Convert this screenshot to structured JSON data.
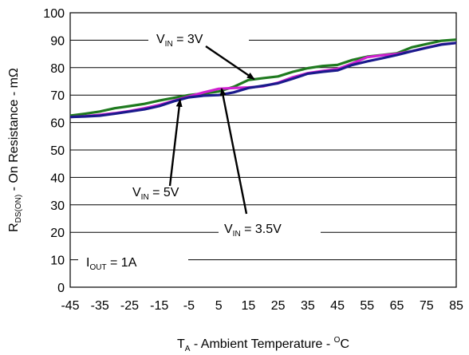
{
  "chart_data": {
    "type": "line",
    "xlabel": {
      "main": "T",
      "sub": "A",
      "rest": " - Ambient Temperature - ",
      "sup": "O",
      "unit": "C"
    },
    "ylabel": {
      "main": "R",
      "sub": "DS(ON)",
      "rest": " - On Resistance - mΩ"
    },
    "xlim": [
      -45,
      85
    ],
    "ylim": [
      0,
      100
    ],
    "xticks": [
      -45,
      -35,
      -25,
      -15,
      -5,
      5,
      15,
      25,
      35,
      45,
      55,
      65,
      75,
      85
    ],
    "yticks": [
      0,
      10,
      20,
      30,
      40,
      50,
      60,
      70,
      80,
      90,
      100
    ],
    "grid": true,
    "x": [
      -45,
      -40,
      -35,
      -30,
      -25,
      -20,
      -15,
      -10,
      -5,
      0,
      5,
      10,
      15,
      20,
      25,
      30,
      35,
      40,
      45,
      50,
      55,
      60,
      65,
      70,
      75,
      80,
      85
    ],
    "series": [
      {
        "name": "VIN = 3V",
        "color": "#1f7a1f",
        "values": [
          62.5,
          63.2,
          64.0,
          65.2,
          66.0,
          66.8,
          68.0,
          69.0,
          70.0,
          70.6,
          71.3,
          73.0,
          75.5,
          76.2,
          76.8,
          78.5,
          79.8,
          80.6,
          81.0,
          82.8,
          84.0,
          84.6,
          85.2,
          87.4,
          88.6,
          89.8,
          90.2
        ]
      },
      {
        "name": "VIN = 3.5V",
        "color": "#d020d0",
        "values": [
          62.0,
          62.3,
          62.8,
          63.4,
          64.2,
          65.2,
          66.4,
          68.0,
          69.5,
          71.0,
          72.3,
          72.6,
          72.8,
          73.2,
          74.5,
          76.5,
          78.0,
          78.8,
          79.5,
          81.5,
          83.8,
          84.5,
          85.0,
          86.0,
          87.3,
          88.5,
          89.0
        ]
      },
      {
        "name": "VIN = 5V",
        "color": "#1a1a8c",
        "values": [
          62.0,
          62.2,
          62.5,
          63.2,
          64.0,
          64.8,
          66.0,
          67.8,
          69.2,
          69.8,
          70.0,
          71.0,
          72.6,
          73.4,
          74.3,
          76.0,
          77.8,
          78.5,
          79.0,
          81.0,
          82.3,
          83.4,
          84.6,
          86.0,
          87.2,
          88.4,
          89.0
        ]
      }
    ],
    "annotations": [
      {
        "id": "vin3",
        "main": "V",
        "sub": "IN",
        "rest": " = 3V",
        "target": 0
      },
      {
        "id": "vin5",
        "main": "V",
        "sub": "IN",
        "rest": " = 5V",
        "target": 2
      },
      {
        "id": "vin35",
        "main": "V",
        "sub": "IN",
        "rest": " = 3.5V",
        "target": 1
      },
      {
        "id": "iout",
        "main": "I",
        "sub": "OUT",
        "rest": " = 1A"
      }
    ]
  }
}
